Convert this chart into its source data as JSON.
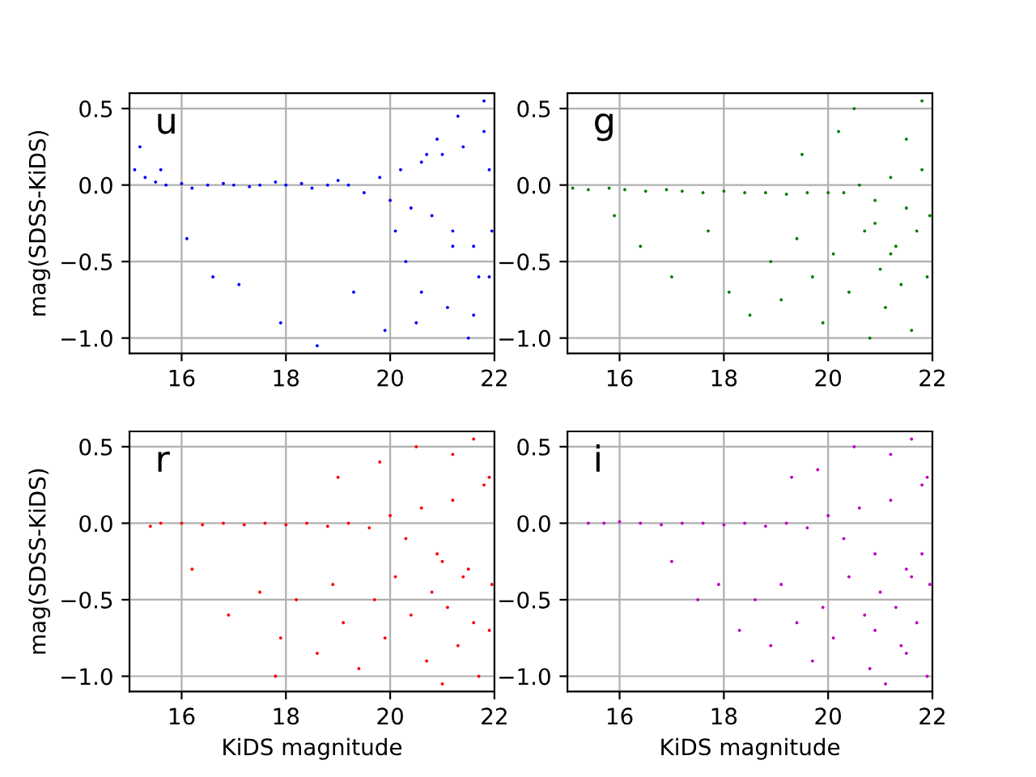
{
  "chart_data": [
    {
      "type": "scatter",
      "ylabel": "mag(SDSS-KiDS)",
      "annotations": [
        "u"
      ],
      "xlim": [
        15,
        22
      ],
      "ylim": [
        -1.1,
        0.6
      ],
      "xticks": [
        16,
        18,
        20,
        22
      ],
      "yticks": [
        {
          "value": -1.0,
          "label": "−1.0"
        },
        {
          "value": -0.5,
          "label": "−0.5"
        },
        {
          "value": 0.0,
          "label": "0.0"
        },
        {
          "value": 0.5,
          "label": "0.5"
        }
      ],
      "grid": true,
      "marker": "circle",
      "series": [
        {
          "color": "#0000ff",
          "x": [
            15.1,
            15.3,
            15.5,
            15.7,
            16.0,
            16.2,
            16.5,
            16.8,
            17.0,
            17.3,
            17.5,
            17.8,
            18.0,
            18.3,
            18.5,
            18.8,
            19.0,
            19.2,
            19.5,
            19.8,
            20.0,
            20.2,
            20.4,
            20.6,
            20.8,
            21.0,
            21.2,
            21.4,
            21.6,
            21.8,
            21.9,
            15.2,
            15.6,
            16.1,
            16.6,
            17.1,
            17.9,
            18.6,
            19.3,
            19.9,
            20.3,
            20.5,
            20.9,
            21.1,
            21.3,
            21.5,
            21.7,
            21.8,
            21.95,
            20.7,
            21.2,
            21.6,
            21.9,
            20.1,
            20.6
          ],
          "values": [
            0.1,
            0.05,
            0.02,
            0.0,
            0.01,
            -0.02,
            0.0,
            0.01,
            0.0,
            -0.01,
            0.0,
            0.02,
            0.0,
            0.01,
            -0.02,
            0.0,
            0.03,
            0.0,
            -0.05,
            0.05,
            -0.1,
            0.1,
            -0.15,
            0.15,
            -0.2,
            0.2,
            -0.3,
            0.25,
            -0.4,
            0.35,
            -0.6,
            0.25,
            0.1,
            -0.35,
            -0.6,
            -0.65,
            -0.9,
            -1.05,
            -0.7,
            -0.95,
            -0.5,
            -0.9,
            0.3,
            -0.8,
            0.45,
            -1.0,
            -0.6,
            0.55,
            -0.3,
            0.2,
            -0.4,
            -0.85,
            0.1,
            -0.3,
            -0.7
          ]
        }
      ]
    },
    {
      "type": "scatter",
      "annotations": [
        "g"
      ],
      "xlim": [
        15,
        22
      ],
      "ylim": [
        -1.1,
        0.6
      ],
      "xticks": [
        16,
        18,
        20,
        22
      ],
      "yticks": [
        {
          "value": -1.0,
          "label": "−1.0"
        },
        {
          "value": -0.5,
          "label": "−0.5"
        },
        {
          "value": 0.0,
          "label": "0.0"
        },
        {
          "value": 0.5,
          "label": "0.5"
        }
      ],
      "grid": true,
      "marker": "circle",
      "series": [
        {
          "color": "#008000",
          "x": [
            15.1,
            15.4,
            15.8,
            16.1,
            16.5,
            16.9,
            17.2,
            17.6,
            18.0,
            18.4,
            18.8,
            19.2,
            19.6,
            20.0,
            20.3,
            20.6,
            20.9,
            21.2,
            21.5,
            21.8,
            21.95,
            15.9,
            16.4,
            17.0,
            17.7,
            18.1,
            18.5,
            18.9,
            19.1,
            19.4,
            19.7,
            19.9,
            20.1,
            20.4,
            20.7,
            20.8,
            21.0,
            21.1,
            21.3,
            21.4,
            21.6,
            21.7,
            21.9,
            20.2,
            20.5,
            21.5,
            21.8,
            19.5,
            20.9,
            21.2
          ],
          "values": [
            -0.02,
            -0.03,
            -0.02,
            -0.03,
            -0.04,
            -0.03,
            -0.04,
            -0.05,
            -0.04,
            -0.05,
            -0.05,
            -0.06,
            -0.05,
            -0.05,
            -0.05,
            0.0,
            -0.1,
            0.05,
            -0.15,
            0.1,
            -0.2,
            -0.2,
            -0.4,
            -0.6,
            -0.3,
            -0.7,
            -0.85,
            -0.5,
            -0.75,
            -0.35,
            -0.6,
            -0.9,
            -0.45,
            -0.7,
            -0.3,
            -1.0,
            -0.55,
            -0.8,
            -0.4,
            -0.65,
            -0.95,
            -0.3,
            -0.6,
            0.35,
            0.5,
            0.3,
            0.55,
            0.2,
            -0.25,
            -0.45
          ]
        }
      ]
    },
    {
      "type": "scatter",
      "xlabel": "KiDS magnitude",
      "ylabel": "mag(SDSS-KiDS)",
      "annotations": [
        "r"
      ],
      "xlim": [
        15,
        22
      ],
      "ylim": [
        -1.1,
        0.6
      ],
      "xticks": [
        16,
        18,
        20,
        22
      ],
      "yticks": [
        {
          "value": -1.0,
          "label": "−1.0"
        },
        {
          "value": -0.5,
          "label": "−0.5"
        },
        {
          "value": 0.0,
          "label": "0.0"
        },
        {
          "value": 0.5,
          "label": "0.5"
        }
      ],
      "grid": true,
      "marker": "circle",
      "series": [
        {
          "color": "#ff0000",
          "x": [
            15.4,
            15.6,
            16.0,
            16.4,
            16.8,
            17.2,
            17.6,
            18.0,
            18.4,
            18.8,
            19.2,
            19.6,
            20.0,
            20.3,
            20.6,
            20.9,
            21.2,
            21.5,
            21.8,
            21.95,
            16.2,
            16.9,
            17.5,
            17.9,
            18.2,
            18.6,
            18.9,
            19.1,
            19.4,
            19.7,
            19.9,
            20.1,
            20.4,
            20.7,
            20.8,
            21.0,
            21.1,
            21.3,
            21.4,
            21.6,
            21.7,
            21.9,
            19.0,
            19.8,
            20.5,
            21.2,
            21.6,
            21.9,
            17.8,
            21.0
          ],
          "values": [
            -0.02,
            0.0,
            0.0,
            -0.01,
            0.0,
            -0.01,
            0.0,
            -0.01,
            0.0,
            -0.02,
            0.0,
            -0.03,
            0.05,
            -0.1,
            0.1,
            -0.2,
            0.15,
            -0.3,
            0.25,
            -0.4,
            -0.3,
            -0.6,
            -0.45,
            -0.75,
            -0.5,
            -0.85,
            -0.4,
            -0.65,
            -0.95,
            -0.5,
            -0.75,
            -0.35,
            -0.6,
            -0.9,
            -0.45,
            -1.05,
            -0.55,
            -0.8,
            -0.35,
            -0.65,
            -1.0,
            -0.7,
            0.3,
            0.4,
            0.5,
            0.45,
            0.55,
            0.3,
            -1.0,
            -0.25
          ]
        }
      ]
    },
    {
      "type": "scatter",
      "xlabel": "KiDS magnitude",
      "annotations": [
        "i"
      ],
      "xlim": [
        15,
        22
      ],
      "ylim": [
        -1.1,
        0.6
      ],
      "xticks": [
        16,
        18,
        20,
        22
      ],
      "yticks": [
        {
          "value": -1.0,
          "label": "−1.0"
        },
        {
          "value": -0.5,
          "label": "−0.5"
        },
        {
          "value": 0.0,
          "label": "0.0"
        },
        {
          "value": 0.5,
          "label": "0.5"
        }
      ],
      "grid": true,
      "marker": "circle",
      "series": [
        {
          "color": "#bf00bf",
          "x": [
            15.4,
            15.7,
            16.0,
            16.4,
            16.8,
            17.2,
            17.6,
            18.0,
            18.4,
            18.8,
            19.2,
            19.6,
            20.0,
            20.3,
            20.6,
            20.9,
            21.2,
            21.5,
            21.8,
            21.95,
            17.0,
            17.5,
            17.9,
            18.3,
            18.6,
            18.9,
            19.1,
            19.4,
            19.7,
            19.9,
            20.1,
            20.4,
            20.7,
            20.8,
            21.0,
            21.1,
            21.3,
            21.4,
            21.6,
            21.7,
            21.9,
            19.3,
            19.8,
            20.5,
            21.2,
            21.6,
            21.9,
            20.9,
            21.5,
            21.8
          ],
          "values": [
            0.0,
            0.0,
            0.01,
            0.0,
            -0.01,
            0.0,
            0.0,
            -0.01,
            0.0,
            -0.02,
            0.0,
            -0.03,
            0.05,
            -0.1,
            0.1,
            -0.2,
            0.15,
            -0.3,
            0.25,
            -0.4,
            -0.25,
            -0.5,
            -0.4,
            -0.7,
            -0.5,
            -0.8,
            -0.4,
            -0.65,
            -0.9,
            -0.55,
            -0.75,
            -0.35,
            -0.6,
            -0.95,
            -0.45,
            -1.05,
            -0.55,
            -0.8,
            -0.35,
            -0.65,
            -1.0,
            0.3,
            0.35,
            0.5,
            0.45,
            0.55,
            0.3,
            -0.7,
            -0.85,
            -0.2
          ]
        }
      ]
    }
  ]
}
